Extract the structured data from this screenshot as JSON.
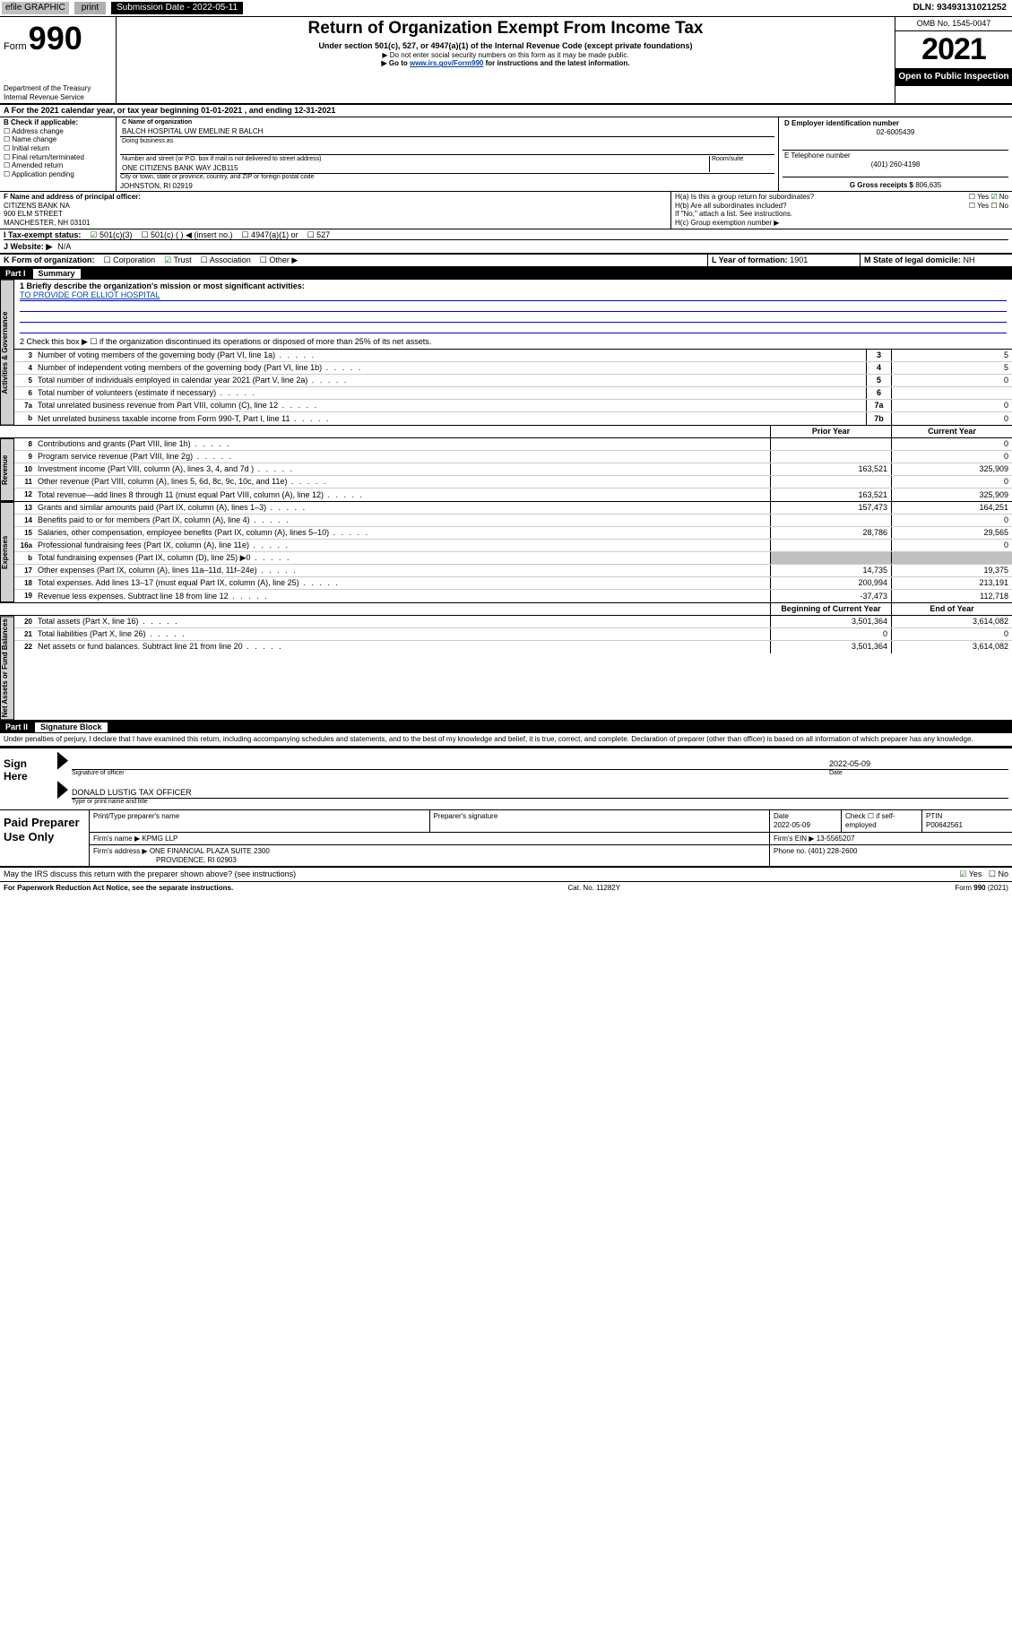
{
  "topbar": {
    "efile": "efile GRAPHIC",
    "print": "print",
    "sub_date_label": "Submission Date",
    "sub_date_value": " - 2022-05-11",
    "dln_label": "DLN: ",
    "dln_value": "93493131021252"
  },
  "header": {
    "form_word": "Form",
    "form_num": "990",
    "dept": "Department of the Treasury\nInternal Revenue Service",
    "title": "Return of Organization Exempt From Income Tax",
    "subtitle": "Under section 501(c), 527, or 4947(a)(1) of the Internal Revenue Code (except private foundations)",
    "note1": "▶ Do not enter social security numbers on this form as it may be made public.",
    "note2_pre": "▶ Go to ",
    "note2_link": "www.irs.gov/Form990",
    "note2_post": " for instructions and the latest information.",
    "omb": "OMB No. 1545-0047",
    "year": "2021",
    "open_pub": "Open to Public Inspection"
  },
  "a_line": "A For the 2021 calendar year, or tax year beginning 01-01-2021    , and ending 12-31-2021",
  "box_b": {
    "label": "B Check if applicable:",
    "items": [
      "Address change",
      "Name change",
      "Initial return",
      "Final return/terminated",
      "Amended return",
      "Application pending"
    ]
  },
  "box_c": {
    "name_label": "C Name of organization",
    "name": "BALCH HOSPITAL UW EMELINE R BALCH",
    "dba_label": "Doing business as",
    "addr_label": "Number and street (or P.O. box if mail is not delivered to street address)",
    "room_label": "Room/suite",
    "addr": "ONE CITIZENS BANK WAY JCB115",
    "city_label": "City or town, state or province, country, and ZIP or foreign postal code",
    "city": "JOHNSTON, RI  02919"
  },
  "box_d": {
    "label": "D Employer identification number",
    "value": "02-6005439"
  },
  "box_e": {
    "label": "E Telephone number",
    "value": "(401) 260-4198"
  },
  "box_g": {
    "label": "G Gross receipts $",
    "value": "806,635"
  },
  "box_f": {
    "label": "F  Name and address of principal officer:",
    "lines": [
      "CITIZENS BANK NA",
      "900 ELM STREET",
      "MANCHESTER, NH  03101"
    ]
  },
  "box_h": {
    "a_label": "H(a)  Is this a group return for subordinates?",
    "a_yes": "Yes",
    "a_no": "No",
    "b_label": "H(b)  Are all subordinates included?",
    "b_yes": "Yes",
    "b_no": "No",
    "note": "If \"No,\" attach a list. See instructions.",
    "c_label": "H(c)  Group exemption number ▶"
  },
  "box_i": {
    "label": "I     Tax-exempt status:",
    "o1": "501(c)(3)",
    "o2": "501(c) (  ) ◀ (insert no.)",
    "o3": "4947(a)(1) or",
    "o4": "527"
  },
  "box_j": {
    "label": "J    Website: ▶",
    "value": "N/A"
  },
  "box_k": {
    "label": "K Form of organization:",
    "o1": "Corporation",
    "o2": "Trust",
    "o3": "Association",
    "o4": "Other ▶"
  },
  "box_l": {
    "label": "L Year of formation:",
    "value": "1901"
  },
  "box_m": {
    "label": "M State of legal domicile:",
    "value": "NH"
  },
  "part1": {
    "label": "Part I",
    "title": "Summary"
  },
  "mission": {
    "q": "1   Briefly describe the organization's mission or most significant activities:",
    "text": "TO PROVIDE FOR ELLIOT HOSPITAL"
  },
  "line2": "2    Check this box ▶ ☐  if the organization discontinued its operations or disposed of more than 25% of its net assets.",
  "activities_rows": [
    {
      "n": "3",
      "t": "Number of voting members of the governing body (Part VI, line 1a)",
      "box": "3",
      "v": "5"
    },
    {
      "n": "4",
      "t": "Number of independent voting members of the governing body (Part VI, line 1b)",
      "box": "4",
      "v": "5"
    },
    {
      "n": "5",
      "t": "Total number of individuals employed in calendar year 2021 (Part V, line 2a)",
      "box": "5",
      "v": "0"
    },
    {
      "n": "6",
      "t": "Total number of volunteers (estimate if necessary)",
      "box": "6",
      "v": ""
    },
    {
      "n": "7a",
      "t": "Total unrelated business revenue from Part VIII, column (C), line 12",
      "box": "7a",
      "v": "0"
    },
    {
      "n": "b",
      "t": "Net unrelated business taxable income from Form 990-T, Part I, line 11",
      "box": "7b",
      "v": "0"
    }
  ],
  "col_headers": {
    "prior": "Prior Year",
    "current": "Current Year"
  },
  "revenue_rows": [
    {
      "n": "8",
      "t": "Contributions and grants (Part VIII, line 1h)",
      "p": "",
      "c": "0"
    },
    {
      "n": "9",
      "t": "Program service revenue (Part VIII, line 2g)",
      "p": "",
      "c": "0"
    },
    {
      "n": "10",
      "t": "Investment income (Part VIII, column (A), lines 3, 4, and 7d )",
      "p": "163,521",
      "c": "325,909"
    },
    {
      "n": "11",
      "t": "Other revenue (Part VIII, column (A), lines 5, 6d, 8c, 9c, 10c, and 11e)",
      "p": "",
      "c": "0"
    },
    {
      "n": "12",
      "t": "Total revenue—add lines 8 through 11 (must equal Part VIII, column (A), line 12)",
      "p": "163,521",
      "c": "325,909"
    }
  ],
  "expense_rows": [
    {
      "n": "13",
      "t": "Grants and similar amounts paid (Part IX, column (A), lines 1–3)",
      "p": "157,473",
      "c": "164,251"
    },
    {
      "n": "14",
      "t": "Benefits paid to or for members (Part IX, column (A), line 4)",
      "p": "",
      "c": "0"
    },
    {
      "n": "15",
      "t": "Salaries, other compensation, employee benefits (Part IX, column (A), lines 5–10)",
      "p": "28,786",
      "c": "29,565"
    },
    {
      "n": "16a",
      "t": "Professional fundraising fees (Part IX, column (A), line 11e)",
      "p": "",
      "c": "0"
    },
    {
      "n": "b",
      "t": "Total fundraising expenses (Part IX, column (D), line 25) ▶0",
      "p": "shade",
      "c": "shade"
    },
    {
      "n": "17",
      "t": "Other expenses (Part IX, column (A), lines 11a–11d, 11f–24e)",
      "p": "14,735",
      "c": "19,375"
    },
    {
      "n": "18",
      "t": "Total expenses. Add lines 13–17 (must equal Part IX, column (A), line 25)",
      "p": "200,994",
      "c": "213,191"
    },
    {
      "n": "19",
      "t": "Revenue less expenses. Subtract line 18 from line 12",
      "p": "-37,473",
      "c": "112,718"
    }
  ],
  "net_headers": {
    "beg": "Beginning of Current Year",
    "end": "End of Year"
  },
  "net_rows": [
    {
      "n": "20",
      "t": "Total assets (Part X, line 16)",
      "p": "3,501,364",
      "c": "3,614,082"
    },
    {
      "n": "21",
      "t": "Total liabilities (Part X, line 26)",
      "p": "0",
      "c": "0"
    },
    {
      "n": "22",
      "t": "Net assets or fund balances. Subtract line 21 from line 20",
      "p": "3,501,364",
      "c": "3,614,082"
    }
  ],
  "part2": {
    "label": "Part II",
    "title": "Signature Block"
  },
  "penalties": "Under penalties of perjury, I declare that I have examined this return, including accompanying schedules and statements, and to the best of my knowledge and belief, it is true, correct, and complete. Declaration of preparer (other than officer) is based on all information of which preparer has any knowledge.",
  "sign": {
    "here": "Sign Here",
    "sig_label": "Signature of officer",
    "date_label": "Date",
    "date": "2022-05-09",
    "name": "DONALD LUSTIG TAX OFFICER",
    "name_label": "Type or print name and title"
  },
  "paid": {
    "label": "Paid Preparer Use Only",
    "h1": "Print/Type preparer's name",
    "h2": "Preparer's signature",
    "h3": "Date",
    "h3v": "2022-05-09",
    "h4": "Check ☐ if self-employed",
    "h5": "PTIN",
    "h5v": "P00642561",
    "firm_label": "Firm's name    ▶",
    "firm": "KPMG LLP",
    "ein_label": "Firm's EIN ▶",
    "ein": "13-5565207",
    "addr_label": "Firm's address ▶",
    "addr1": "ONE FINANCIAL PLAZA SUITE 2300",
    "addr2": "PROVIDENCE, RI  02903",
    "phone_label": "Phone no.",
    "phone": "(401) 228-2600"
  },
  "may_irs": "May the IRS discuss this return with the preparer shown above? (see instructions)",
  "may_yes": "Yes",
  "may_no": "No",
  "footer": {
    "left": "For Paperwork Reduction Act Notice, see the separate instructions.",
    "mid": "Cat. No. 11282Y",
    "right": "Form 990 (2021)"
  },
  "sidetabs": {
    "act": "Activities & Governance",
    "rev": "Revenue",
    "exp": "Expenses",
    "net": "Net Assets or Fund Balances"
  },
  "colors": {
    "link": "#0645ad",
    "accent_green": "#006400",
    "shade": "#c0c0c0"
  }
}
